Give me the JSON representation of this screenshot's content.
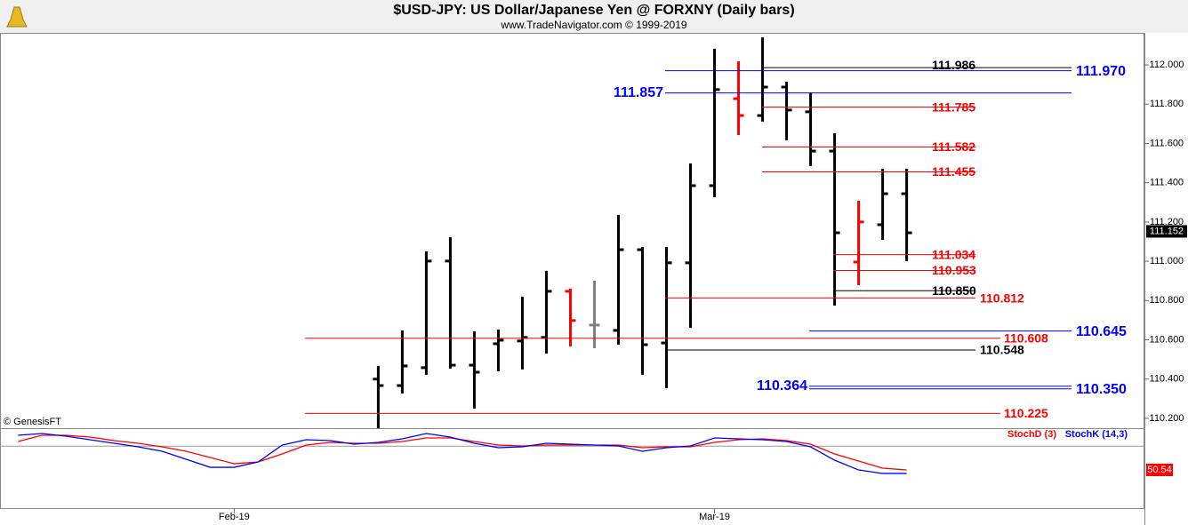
{
  "chart_data": [
    {
      "type": "ohlc",
      "title": "$USD-JPY:  US Dollar/Japanese Yen @ FORXNY  (Daily bars)",
      "subtitle": "www.TradeNavigator.com © 1999-2019",
      "copyright": "© GenesisFT",
      "xlim": [
        -0.75,
        46.9
      ],
      "xticks": [
        {
          "value": 9,
          "label": "Feb-19"
        },
        {
          "value": 29,
          "label": "Mar-19"
        }
      ],
      "ylim": [
        110.15,
        112.163
      ],
      "yticks": [
        {
          "value": 110.2,
          "label": "110.200"
        },
        {
          "value": 110.4,
          "label": "110.400"
        },
        {
          "value": 110.6,
          "label": "110.600"
        },
        {
          "value": 110.8,
          "label": "110.800"
        },
        {
          "value": 111.0,
          "label": "111.000"
        },
        {
          "value": 111.2,
          "label": "111.200"
        },
        {
          "value": 111.4,
          "label": "111.400"
        },
        {
          "value": 111.6,
          "label": "111.600"
        },
        {
          "value": 111.8,
          "label": "111.800"
        },
        {
          "value": 112.0,
          "label": "112.000"
        }
      ],
      "x": [
        15,
        16,
        17,
        18,
        19,
        20,
        21,
        22,
        23,
        24,
        25,
        26,
        27,
        28,
        29,
        30,
        31,
        32,
        33,
        34,
        35,
        36,
        37
      ],
      "open": [
        110.4,
        110.367,
        110.458,
        111.001,
        110.471,
        110.58,
        110.594,
        110.612,
        110.847,
        110.675,
        110.648,
        111.059,
        110.584,
        110.992,
        111.385,
        111.828,
        111.742,
        111.887,
        111.761,
        111.561,
        110.996,
        111.186,
        111.344
      ],
      "high": [
        110.467,
        110.648,
        111.05,
        111.123,
        110.643,
        110.652,
        110.82,
        110.951,
        110.86,
        110.901,
        111.236,
        111.073,
        111.073,
        111.498,
        112.082,
        112.018,
        112.14,
        111.914,
        111.86,
        111.652,
        111.308,
        111.471,
        111.471
      ],
      "low": [
        110.12,
        110.327,
        110.422,
        110.453,
        110.25,
        110.44,
        110.449,
        110.53,
        110.566,
        110.557,
        110.575,
        110.422,
        110.354,
        110.661,
        111.326,
        111.643,
        111.711,
        111.616,
        111.485,
        110.774,
        110.878,
        111.109,
        111.001
      ],
      "close": [
        110.367,
        110.467,
        111.001,
        110.471,
        110.435,
        110.598,
        110.612,
        110.847,
        110.698,
        110.675,
        111.059,
        110.575,
        110.992,
        111.385,
        111.874,
        111.742,
        111.887,
        111.77,
        111.561,
        111.145,
        111.2,
        111.344,
        111.145
      ],
      "colors": [
        "#000000",
        "#000000",
        "#000000",
        "#000000",
        "#000000",
        "#000000",
        "#000000",
        "#000000",
        "#ff0000",
        "#808080",
        "#000000",
        "#000000",
        "#000000",
        "#000000",
        "#000000",
        "#ff0000",
        "#000000",
        "#000000",
        "#000000",
        "#000000",
        "#ff0000",
        "#000000",
        "#000000"
      ],
      "levels": [
        {
          "value": 111.986,
          "label": "111.986",
          "color": "#000000"
        },
        {
          "value": 111.97,
          "label": "111.970",
          "color": "#0000ff"
        },
        {
          "value": 111.857,
          "label": "111.857",
          "color": "#0000ff"
        },
        {
          "value": 111.785,
          "label": "111.785",
          "color": "#ff0000"
        },
        {
          "value": 111.582,
          "label": "111.582",
          "color": "#ff0000"
        },
        {
          "value": 111.455,
          "label": "111.455",
          "color": "#ff0000"
        },
        {
          "value": 111.034,
          "label": "111.034",
          "color": "#ff0000"
        },
        {
          "value": 110.953,
          "label": "110.953",
          "color": "#ff0000"
        },
        {
          "value": 110.85,
          "label": "110.850",
          "color": "#000000"
        },
        {
          "value": 110.812,
          "label": "110.812",
          "color": "#ff0000"
        },
        {
          "value": 110.645,
          "label": "110.645",
          "color": "#0000ff"
        },
        {
          "value": 110.608,
          "label": "110.608",
          "color": "#ff0000"
        },
        {
          "value": 110.548,
          "label": "110.548",
          "color": "#000000"
        },
        {
          "value": 110.364,
          "label": "110.364",
          "color": "#0000ff"
        },
        {
          "value": 110.35,
          "label": "110.350",
          "color": "#0000ff"
        },
        {
          "value": 110.225,
          "label": "110.225",
          "color": "#ff0000"
        }
      ],
      "last": 111.152
    },
    {
      "type": "line",
      "ylim": [
        0,
        100
      ],
      "reference_line": 80,
      "x": [
        0,
        1,
        2,
        3,
        4,
        5,
        6,
        7,
        8,
        9,
        10,
        11,
        12,
        13,
        14,
        15,
        16,
        17,
        18,
        19,
        20,
        21,
        22,
        23,
        24,
        25,
        26,
        27,
        28,
        29,
        30,
        31,
        32,
        33,
        34,
        35,
        36,
        37
      ],
      "series": [
        {
          "name": "StochD (3)",
          "color": "#ff0000",
          "values": [
            85.7,
            93.4,
            93.4,
            91.2,
            86.8,
            83.5,
            79.1,
            73.6,
            65.9,
            58.2,
            60.4,
            70.3,
            81.3,
            84.6,
            83.5,
            83.5,
            85.7,
            90.1,
            90.1,
            85.7,
            81.3,
            80.2,
            81.3,
            81.3,
            81.3,
            81.3,
            78.0,
            79.1,
            79.1,
            84.6,
            87.9,
            89.0,
            86.8,
            82.4,
            70.3,
            61.5,
            52.7,
            50.54
          ]
        },
        {
          "name": "StochK (14,3)",
          "color": "#0000ff",
          "values": [
            93.4,
            95.6,
            92.3,
            87.9,
            83.5,
            79.1,
            73.6,
            63.7,
            53.8,
            53.8,
            60.4,
            81.3,
            87.9,
            86.8,
            82.4,
            84.6,
            89.0,
            95.6,
            91.2,
            83.5,
            78.0,
            79.1,
            83.5,
            82.4,
            81.3,
            80.2,
            73.6,
            78.0,
            80.2,
            90.1,
            89.0,
            87.9,
            85.7,
            79.1,
            62.6,
            50.5,
            46.2,
            46.2
          ]
        }
      ]
    }
  ]
}
